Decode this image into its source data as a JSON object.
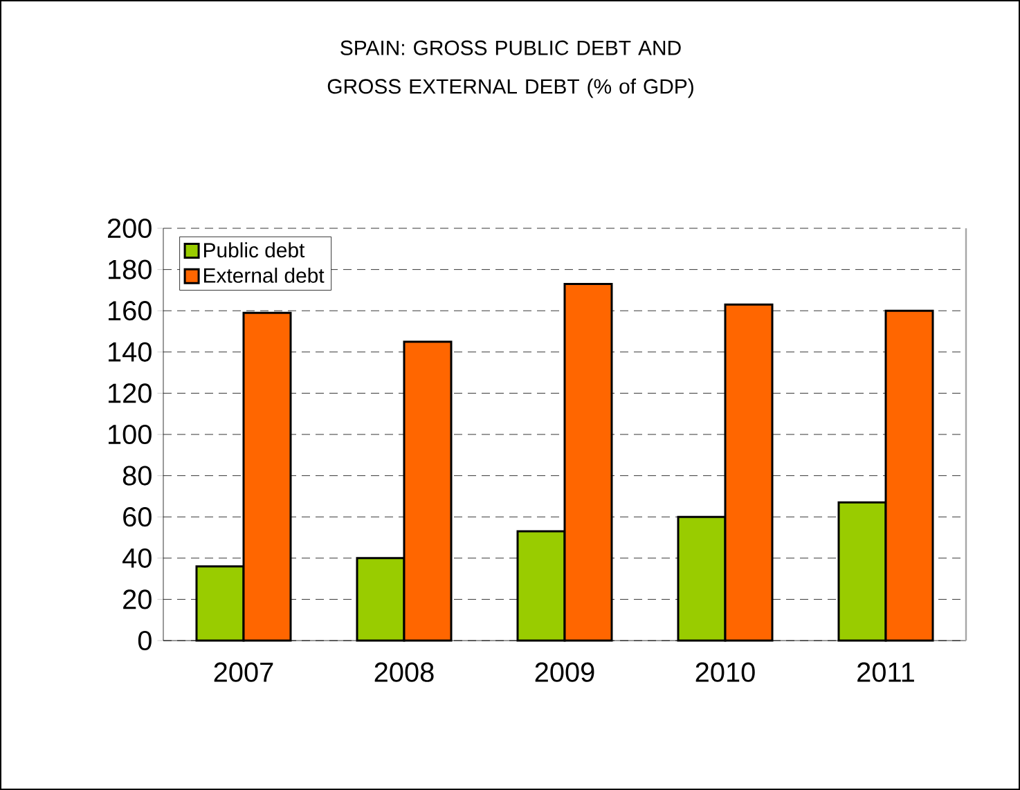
{
  "chart_data": {
    "type": "bar",
    "title": "SPAIN: GROSS PUBLIC DEBT AND GROSS EXTERNAL DEBT (% of GDP)",
    "categories": [
      "2007",
      "2008",
      "2009",
      "2010",
      "2011"
    ],
    "series": [
      {
        "name": "Public debt",
        "color": "#99cc00",
        "values": [
          36,
          40,
          53,
          60,
          67
        ]
      },
      {
        "name": "External debt",
        "color": "#ff6600",
        "values": [
          159,
          145,
          173,
          163,
          160
        ]
      }
    ],
    "ylim": [
      0,
      200
    ],
    "yticks": [
      0,
      20,
      40,
      60,
      80,
      100,
      120,
      140,
      160,
      180,
      200
    ],
    "grid": "y",
    "legend": "top left"
  }
}
